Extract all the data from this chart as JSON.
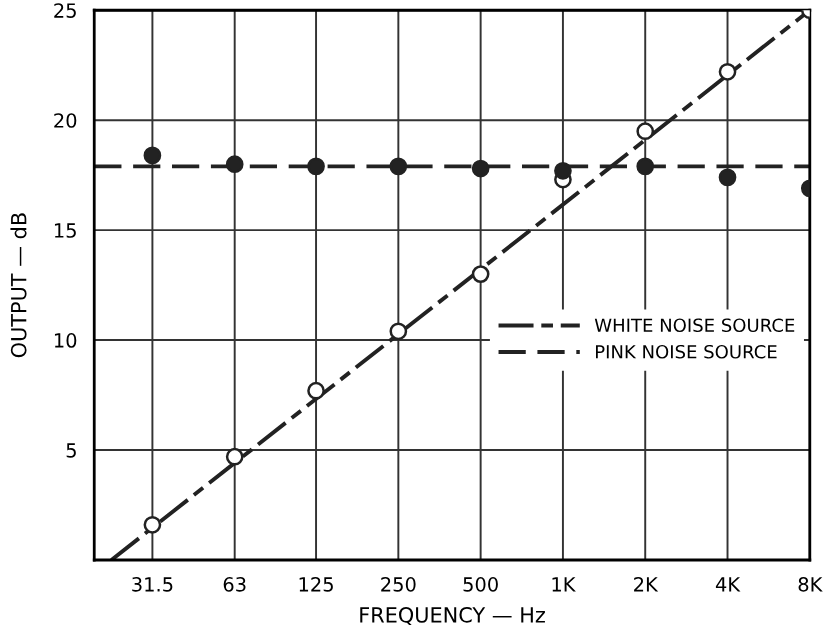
{
  "chart_data": {
    "type": "line",
    "xlabel": "FREQUENCY — Hz",
    "ylabel": "OUTPUT — dB",
    "log": "x",
    "x": [
      31.5,
      63,
      125,
      250,
      500,
      1000,
      2000,
      4000,
      8000
    ],
    "xlim": [
      19.3,
      8000
    ],
    "xticks": [
      31.5,
      63,
      125,
      250,
      500,
      {
        "value": 1000,
        "label": "1K"
      },
      {
        "value": 2000,
        "label": "2K"
      },
      {
        "value": 4000,
        "label": "4K"
      },
      {
        "value": 8000,
        "label": "8K"
      }
    ],
    "ylim": [
      0,
      25
    ],
    "yticks": [
      5,
      10,
      15,
      20,
      25
    ],
    "grid": true,
    "legend": "center right",
    "series": [
      {
        "name": "WHITE NOISE SOURCE",
        "color": "#222222",
        "line_style": "dashdot",
        "marker": "none",
        "x": [
          22.3,
          8000
        ],
        "values": [
          0,
          25
        ]
      },
      {
        "name": "PINK NOISE SOURCE",
        "color": "#222222",
        "line_style": "dashed",
        "marker": "none",
        "x": [
          19.3,
          8000
        ],
        "values": [
          17.9,
          17.9
        ]
      },
      {
        "type": "scatter",
        "color": "#ffffff",
        "marker": "circle",
        "values": [
          1.6,
          4.7,
          7.7,
          10.4,
          13.0,
          17.3,
          19.5,
          22.2,
          25
        ]
      },
      {
        "type": "scatter",
        "color": "#222222",
        "marker": "circle",
        "values": [
          18.4,
          18.0,
          17.9,
          17.9,
          17.8,
          17.7,
          17.9,
          17.4,
          16.9
        ]
      }
    ]
  }
}
